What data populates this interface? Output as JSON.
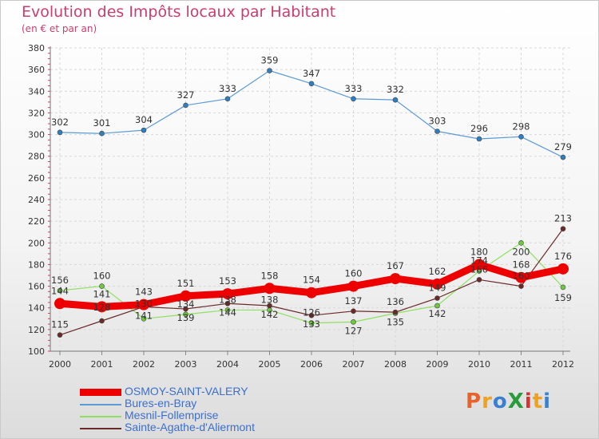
{
  "title": "Evolution des Impôts locaux par Habitant",
  "subtitle": "(en € et par an)",
  "logo": {
    "text": "ProXiti",
    "colors": [
      "#e8632a",
      "#f0a21c",
      "#3b7fd0",
      "#2a9b3b",
      "#d6342b",
      "#f0a21c",
      "#3b7fd0"
    ]
  },
  "chart_data": {
    "type": "line",
    "x": [
      "2000",
      "2001",
      "2002",
      "2003",
      "2004",
      "2005",
      "2006",
      "2007",
      "2008",
      "2009",
      "2010",
      "2011",
      "2012"
    ],
    "yticks": [
      "100",
      "120",
      "140",
      "160",
      "180",
      "200",
      "220",
      "240",
      "260",
      "280",
      "300",
      "320",
      "340",
      "360",
      "380"
    ],
    "ylim": [
      100,
      380
    ],
    "series": [
      {
        "name": "Bures-en-Bray",
        "color": "#5b9bd5",
        "marker": "#2f7fc0",
        "values": [
          302,
          301,
          304,
          327,
          333,
          359,
          347,
          333,
          332,
          303,
          296,
          298,
          279
        ],
        "labels": [
          "302",
          "301",
          "304",
          "327",
          "333",
          "359",
          "347",
          "333",
          "332",
          "303",
          "296",
          "298",
          "279"
        ]
      },
      {
        "name": "Mesnil-Follemprise",
        "color": "#8fe060",
        "marker": "#6cc940",
        "values": [
          156,
          160,
          130,
          134,
          138,
          138,
          126,
          127,
          135,
          142,
          174,
          200,
          159
        ],
        "labels": [
          "156",
          "160",
          "130",
          "134",
          "138",
          "138",
          "126",
          "127",
          "135",
          "142",
          "174",
          "200",
          "159"
        ]
      },
      {
        "name": "Sainte-Agathe-d'Aliermont",
        "color": "#6b2a2a",
        "marker": "#6b2a2a",
        "values": [
          115,
          128,
          141,
          139,
          144,
          142,
          133,
          137,
          136,
          149,
          166,
          160,
          213
        ],
        "labels": [
          "115",
          "128",
          "141",
          "139",
          "144",
          "142",
          "133",
          "137",
          "136",
          "149",
          "166",
          "160",
          "213"
        ]
      },
      {
        "name": "OSMOY-SAINT-VALERY",
        "color": "#ee0000",
        "marker": "#ee0000",
        "values": [
          144,
          141,
          143,
          151,
          153,
          158,
          154,
          160,
          167,
          162,
          180,
          168,
          176
        ],
        "labels": [
          "144",
          "141",
          "143",
          "151",
          "153",
          "158",
          "154",
          "160",
          "167",
          "162",
          "180",
          "168",
          "176"
        ]
      }
    ],
    "legend": [
      {
        "name": "OSMOY-SAINT-VALERY",
        "color": "#ee0000"
      },
      {
        "name": "Bures-en-Bray",
        "color": "#5b9bd5"
      },
      {
        "name": "Mesnil-Follemprise",
        "color": "#8fe060"
      },
      {
        "name": "Sainte-Agathe-d'Aliermont",
        "color": "#6b2a2a"
      }
    ]
  }
}
